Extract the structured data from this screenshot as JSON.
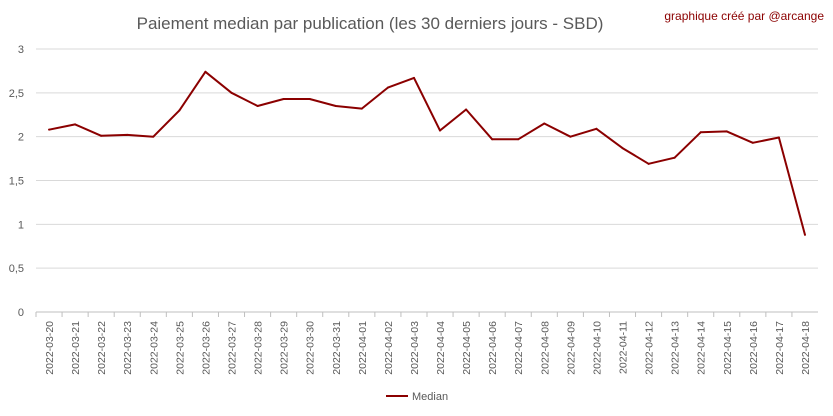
{
  "chart_data": {
    "type": "line",
    "title": "Paiement median par publication (les 30 derniers jours - SBD)",
    "credit": "graphique créé par @arcange",
    "xlabel": "",
    "ylabel": "",
    "ylim": [
      0,
      3
    ],
    "yticks": [
      "0",
      "0,5",
      "1",
      "1,5",
      "2",
      "2,5",
      "3"
    ],
    "grid": true,
    "legend_position": "bottom",
    "categories": [
      "2022-03-20",
      "2022-03-21",
      "2022-03-22",
      "2022-03-23",
      "2022-03-24",
      "2022-03-25",
      "2022-03-26",
      "2022-03-27",
      "2022-03-28",
      "2022-03-29",
      "2022-03-30",
      "2022-03-31",
      "2022-04-01",
      "2022-04-02",
      "2022-04-03",
      "2022-04-04",
      "2022-04-05",
      "2022-04-06",
      "2022-04-07",
      "2022-04-08",
      "2022-04-09",
      "2022-04-10",
      "2022-04-11",
      "2022-04-12",
      "2022-04-13",
      "2022-04-14",
      "2022-04-15",
      "2022-04-16",
      "2022-04-17",
      "2022-04-18"
    ],
    "series": [
      {
        "name": "Median",
        "color": "#8b0000",
        "values": [
          2.08,
          2.14,
          2.01,
          2.02,
          2.0,
          2.3,
          2.74,
          2.5,
          2.35,
          2.43,
          2.43,
          2.35,
          2.32,
          2.56,
          2.67,
          2.07,
          2.31,
          1.97,
          1.97,
          2.15,
          2.0,
          2.09,
          1.87,
          1.69,
          1.76,
          2.05,
          2.06,
          1.93,
          1.99,
          0.88
        ]
      }
    ]
  }
}
